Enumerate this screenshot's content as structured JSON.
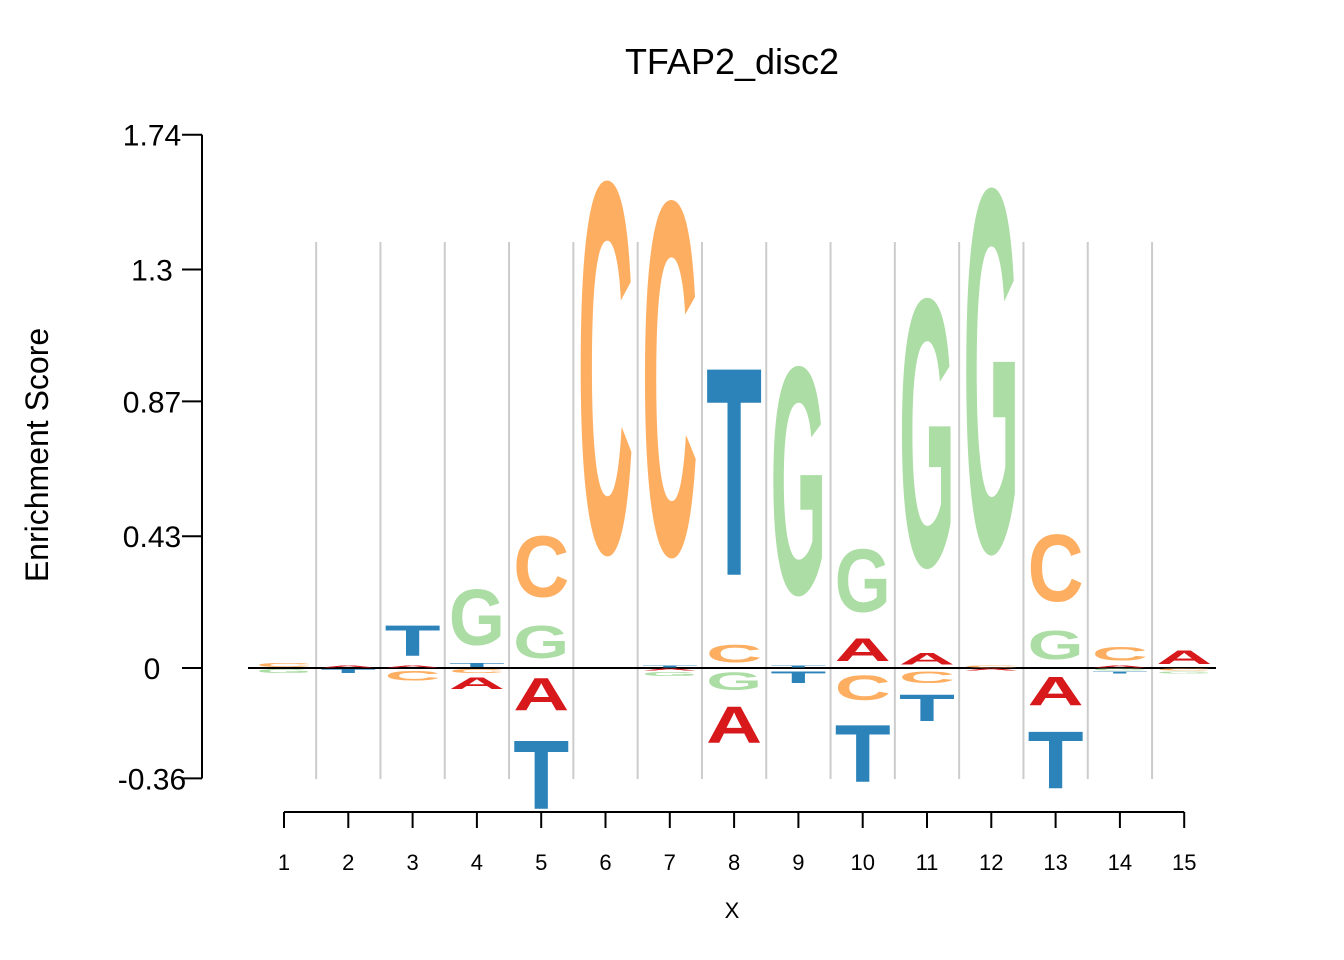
{
  "chart_data": {
    "type": "sequence-logo",
    "title": "TFAP2_disc2",
    "xlabel": "X",
    "ylabel": "Enrichment Score",
    "y_ticks": [
      "1.74",
      "1.3",
      "0.87",
      "0.43",
      "0",
      "-0.36"
    ],
    "y_tick_values": [
      1.74,
      1.3,
      0.87,
      0.43,
      0,
      -0.36
    ],
    "x_ticks": [
      "1",
      "2",
      "3",
      "4",
      "5",
      "6",
      "7",
      "8",
      "9",
      "10",
      "11",
      "12",
      "13",
      "14",
      "15"
    ],
    "ylim": [
      -0.36,
      1.74
    ],
    "colors": {
      "A": "#d7191c",
      "C": "#fdae61",
      "G": "#abdda4",
      "T": "#2b83ba"
    },
    "positions": [
      {
        "pos": 1,
        "letters": [
          [
            "C",
            0.02
          ],
          [
            "G",
            -0.02
          ]
        ]
      },
      {
        "pos": 2,
        "letters": [
          [
            "A",
            0.01
          ],
          [
            "T",
            -0.02
          ]
        ]
      },
      {
        "pos": 3,
        "letters": [
          [
            "A",
            0.01
          ],
          [
            "T",
            0.16
          ],
          [
            "C",
            -0.05
          ]
        ]
      },
      {
        "pos": 4,
        "letters": [
          [
            "T",
            0.02
          ],
          [
            "G",
            0.29
          ],
          [
            "C",
            -0.02
          ],
          [
            "A",
            -0.06
          ]
        ]
      },
      {
        "pos": 5,
        "letters": [
          [
            "G",
            0.17
          ],
          [
            "C",
            0.32
          ],
          [
            "A",
            -0.17
          ],
          [
            "T",
            -0.36
          ]
        ]
      },
      {
        "pos": 6,
        "letters": [
          [
            "C",
            1.94
          ]
        ]
      },
      {
        "pos": 7,
        "letters": [
          [
            "T",
            0.01
          ],
          [
            "C",
            1.85
          ],
          [
            "A",
            -0.01
          ],
          [
            "G",
            -0.02
          ]
        ]
      },
      {
        "pos": 8,
        "letters": [
          [
            "C",
            0.09
          ],
          [
            "T",
            1.09
          ],
          [
            "G",
            -0.09
          ],
          [
            "A",
            -0.19
          ]
        ]
      },
      {
        "pos": 9,
        "letters": [
          [
            "T",
            0.01
          ],
          [
            "G",
            1.19
          ],
          [
            "T",
            -0.06
          ]
        ]
      },
      {
        "pos": 10,
        "letters": [
          [
            "A",
            0.12
          ],
          [
            "G",
            0.33
          ],
          [
            "C",
            -0.13
          ],
          [
            "T",
            -0.3
          ]
        ]
      },
      {
        "pos": 11,
        "letters": [
          [
            "A",
            0.06
          ],
          [
            "G",
            1.4
          ],
          [
            "C",
            -0.06
          ],
          [
            "T",
            -0.14
          ]
        ]
      },
      {
        "pos": 12,
        "letters": [
          [
            "C",
            0.01
          ],
          [
            "G",
            1.9
          ],
          [
            "A",
            -0.01
          ]
        ]
      },
      {
        "pos": 13,
        "letters": [
          [
            "G",
            0.15
          ],
          [
            "C",
            0.35
          ],
          [
            "A",
            -0.15
          ],
          [
            "T",
            -0.3
          ]
        ]
      },
      {
        "pos": 14,
        "letters": [
          [
            "A",
            0.01
          ],
          [
            "C",
            0.07
          ],
          [
            "G",
            -0.01
          ],
          [
            "T",
            -0.01
          ]
        ]
      },
      {
        "pos": 15,
        "letters": [
          [
            "A",
            0.07
          ],
          [
            "C",
            -0.01
          ],
          [
            "G",
            -0.01
          ]
        ]
      }
    ]
  }
}
